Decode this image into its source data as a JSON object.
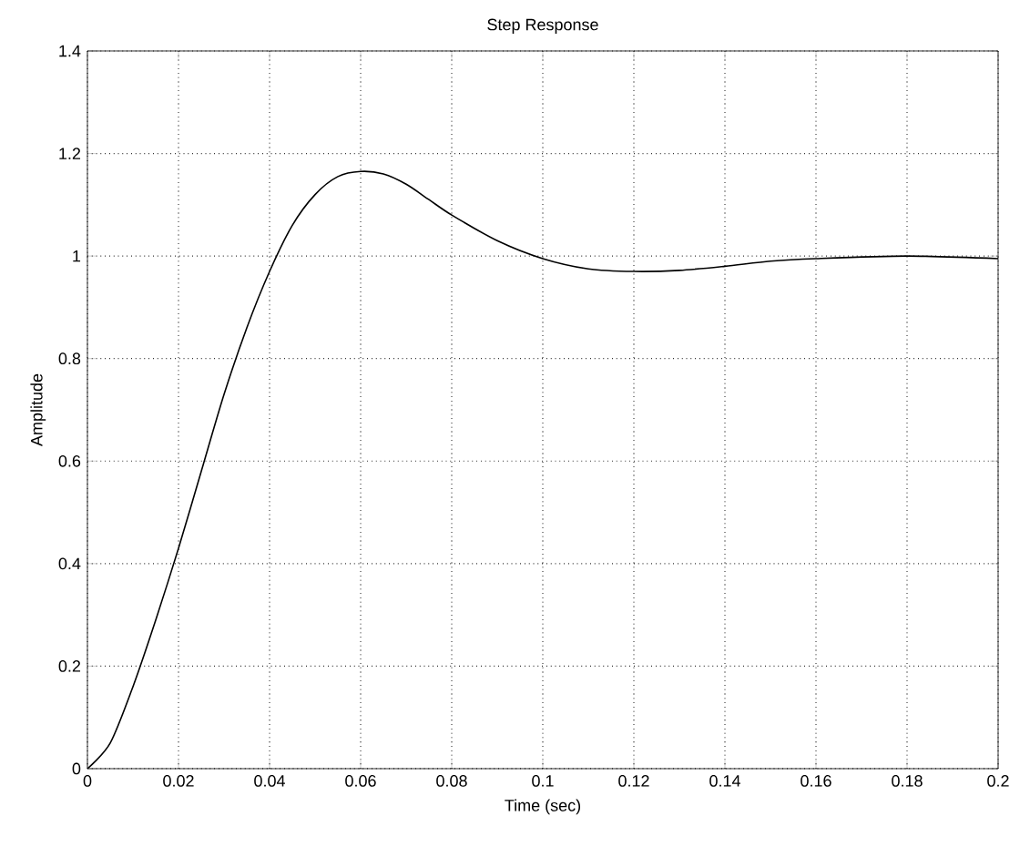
{
  "chart_data": {
    "type": "line",
    "title": "Step Response",
    "xlabel": "Time (sec)",
    "ylabel": "Amplitude",
    "color": "#000000",
    "grid": true,
    "x": [
      0,
      0.005,
      0.01,
      0.015,
      0.02,
      0.025,
      0.03,
      0.035,
      0.04,
      0.045,
      0.05,
      0.055,
      0.06,
      0.065,
      0.07,
      0.075,
      0.08,
      0.09,
      0.1,
      0.11,
      0.12,
      0.13,
      0.14,
      0.15,
      0.16,
      0.18,
      0.2
    ],
    "values": [
      0,
      0.05,
      0.16,
      0.29,
      0.43,
      0.58,
      0.73,
      0.86,
      0.97,
      1.06,
      1.12,
      1.155,
      1.165,
      1.16,
      1.14,
      1.11,
      1.08,
      1.03,
      0.995,
      0.975,
      0.97,
      0.972,
      0.98,
      0.99,
      0.995,
      1.0,
      0.995
    ],
    "xlim": [
      0,
      0.2
    ],
    "ylim": [
      0,
      1.4
    ],
    "xticks": [
      0,
      0.02,
      0.04,
      0.06,
      0.08,
      0.1,
      0.12,
      0.14,
      0.16,
      0.18,
      0.2
    ],
    "yticks": [
      0,
      0.2,
      0.4,
      0.6,
      0.8,
      1,
      1.2,
      1.4
    ]
  }
}
